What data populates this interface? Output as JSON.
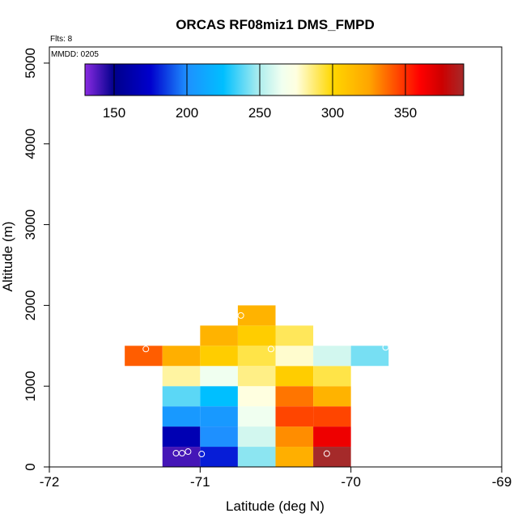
{
  "chart_data": {
    "type": "heatmap",
    "title": "ORCAS RF08miz1 DMS_FMPD",
    "xlabel": "Latitude (deg N)",
    "ylabel": "Altitude (m)",
    "annotations": {
      "flights": "Flts: 8",
      "date": "MMDD: 0205"
    },
    "xlim": [
      -72,
      -69
    ],
    "ylim": [
      0,
      5200
    ],
    "x_ticks": [
      -72,
      -71,
      -70,
      -69
    ],
    "x_tick_labels": [
      "-72",
      "-71",
      "-70",
      "-69"
    ],
    "y_ticks": [
      0,
      1000,
      2000,
      3000,
      4000,
      5000
    ],
    "y_tick_labels": [
      "0",
      "1000",
      "2000",
      "3000",
      "4000",
      "5000"
    ],
    "x_bin_width": 0.25,
    "y_bin_height": 250,
    "colorbar": {
      "min": 130,
      "max": 390,
      "ticks": [
        150,
        200,
        250,
        300,
        350
      ],
      "tick_labels": [
        "150",
        "200",
        "250",
        "300",
        "350"
      ],
      "stops": [
        {
          "v": 130,
          "color": "#8a2be2"
        },
        {
          "v": 150,
          "color": "#00008b"
        },
        {
          "v": 175,
          "color": "#0000cd"
        },
        {
          "v": 200,
          "color": "#1e90ff"
        },
        {
          "v": 225,
          "color": "#00bfff"
        },
        {
          "v": 250,
          "color": "#afeeee"
        },
        {
          "v": 265,
          "color": "#f0fff0"
        },
        {
          "v": 275,
          "color": "#ffffe0"
        },
        {
          "v": 300,
          "color": "#ffd700"
        },
        {
          "v": 325,
          "color": "#ffa500"
        },
        {
          "v": 345,
          "color": "#ff4500"
        },
        {
          "v": 360,
          "color": "#ff0000"
        },
        {
          "v": 375,
          "color": "#cd0000"
        },
        {
          "v": 390,
          "color": "#a52a2a"
        }
      ]
    },
    "cells": [
      {
        "lat": -71.125,
        "alt": 125,
        "value": 140
      },
      {
        "lat": -70.875,
        "alt": 125,
        "value": 180
      },
      {
        "lat": -70.625,
        "alt": 125,
        "value": 245
      },
      {
        "lat": -70.375,
        "alt": 125,
        "value": 320
      },
      {
        "lat": -70.125,
        "alt": 125,
        "value": 390
      },
      {
        "lat": -71.125,
        "alt": 375,
        "value": 165
      },
      {
        "lat": -70.875,
        "alt": 375,
        "value": 200
      },
      {
        "lat": -70.625,
        "alt": 375,
        "value": 258
      },
      {
        "lat": -70.375,
        "alt": 375,
        "value": 330
      },
      {
        "lat": -70.125,
        "alt": 375,
        "value": 365
      },
      {
        "lat": -71.125,
        "alt": 625,
        "value": 205
      },
      {
        "lat": -70.875,
        "alt": 625,
        "value": 205
      },
      {
        "lat": -70.625,
        "alt": 625,
        "value": 265
      },
      {
        "lat": -70.375,
        "alt": 625,
        "value": 345
      },
      {
        "lat": -70.125,
        "alt": 625,
        "value": 345
      },
      {
        "lat": -71.125,
        "alt": 875,
        "value": 238
      },
      {
        "lat": -70.875,
        "alt": 875,
        "value": 225
      },
      {
        "lat": -70.625,
        "alt": 875,
        "value": 275
      },
      {
        "lat": -70.375,
        "alt": 875,
        "value": 335
      },
      {
        "lat": -70.125,
        "alt": 875,
        "value": 318
      },
      {
        "lat": -71.125,
        "alt": 1125,
        "value": 282
      },
      {
        "lat": -70.875,
        "alt": 1125,
        "value": 265
      },
      {
        "lat": -70.625,
        "alt": 1125,
        "value": 285
      },
      {
        "lat": -70.375,
        "alt": 1125,
        "value": 305
      },
      {
        "lat": -70.125,
        "alt": 1125,
        "value": 292
      },
      {
        "lat": -71.375,
        "alt": 1375,
        "value": 340
      },
      {
        "lat": -71.125,
        "alt": 1375,
        "value": 320
      },
      {
        "lat": -70.875,
        "alt": 1375,
        "value": 305
      },
      {
        "lat": -70.625,
        "alt": 1375,
        "value": 292
      },
      {
        "lat": -70.375,
        "alt": 1375,
        "value": 277
      },
      {
        "lat": -70.125,
        "alt": 1375,
        "value": 258
      },
      {
        "lat": -69.875,
        "alt": 1375,
        "value": 242
      },
      {
        "lat": -70.875,
        "alt": 1625,
        "value": 318
      },
      {
        "lat": -70.625,
        "alt": 1625,
        "value": 305
      },
      {
        "lat": -70.375,
        "alt": 1625,
        "value": 290
      },
      {
        "lat": -70.625,
        "alt": 1875,
        "value": 318
      }
    ],
    "points": [
      {
        "lat": -71.16,
        "alt": 170
      },
      {
        "lat": -71.12,
        "alt": 170
      },
      {
        "lat": -71.08,
        "alt": 190
      },
      {
        "lat": -70.99,
        "alt": 160
      },
      {
        "lat": -70.16,
        "alt": 165
      },
      {
        "lat": -71.36,
        "alt": 1460
      },
      {
        "lat": -70.53,
        "alt": 1460
      },
      {
        "lat": -70.73,
        "alt": 1875
      },
      {
        "lat": -69.77,
        "alt": 1480
      }
    ]
  }
}
